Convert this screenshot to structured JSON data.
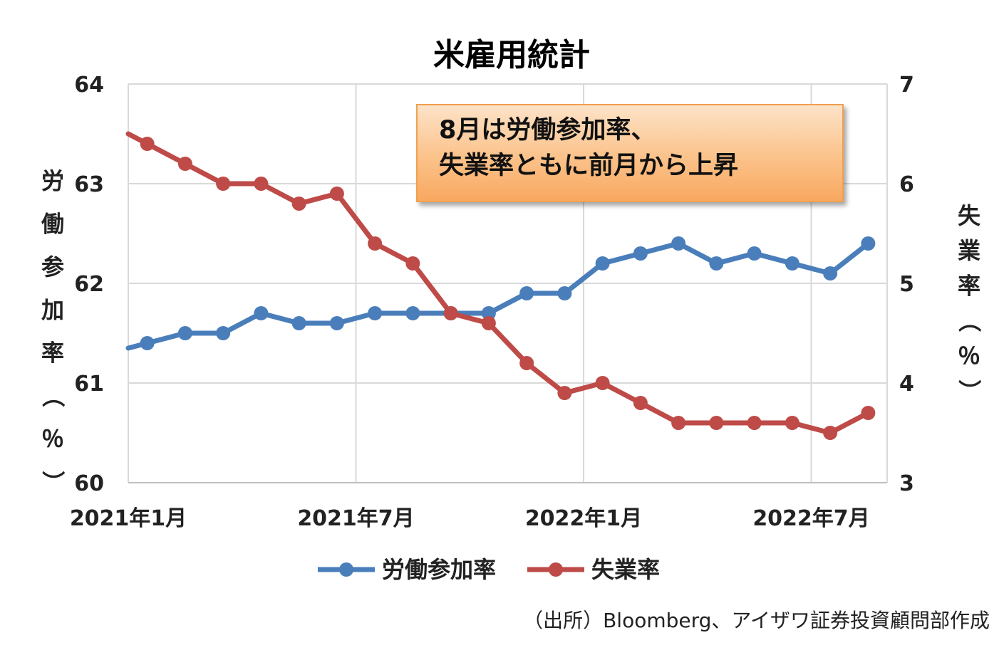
{
  "chart_data": {
    "type": "line",
    "title": "米雇用統計",
    "categories": [
      "2021-01",
      "2021-02",
      "2021-03",
      "2021-04",
      "2021-05",
      "2021-06",
      "2021-07",
      "2021-08",
      "2021-09",
      "2021-10",
      "2021-11",
      "2021-12",
      "2022-01",
      "2022-02",
      "2022-03",
      "2022-04",
      "2022-05",
      "2022-06",
      "2022-07",
      "2022-08"
    ],
    "x_tick_labels": [
      "2021年1月",
      "2021年7月",
      "2022年1月",
      "2022年7月"
    ],
    "y_left": {
      "label": "労働参加率（％）",
      "ylim": [
        60,
        64
      ],
      "ticks": [
        "60",
        "61",
        "62",
        "63",
        "64"
      ]
    },
    "y_right": {
      "label": "失業率（％）",
      "ylim": [
        3,
        7
      ],
      "ticks": [
        "3",
        "4",
        "5",
        "6",
        "7"
      ]
    },
    "series": [
      {
        "name": "労働参加率",
        "axis": "left",
        "color": "#4a7ebb",
        "values": [
          61.4,
          61.5,
          61.5,
          61.7,
          61.6,
          61.6,
          61.7,
          61.7,
          61.7,
          61.7,
          61.9,
          61.9,
          62.2,
          62.3,
          62.4,
          62.2,
          62.3,
          62.2,
          62.1,
          62.4
        ]
      },
      {
        "name": "失業率",
        "axis": "right",
        "color": "#be4b48",
        "values": [
          6.4,
          6.2,
          6.0,
          6.0,
          5.8,
          5.9,
          5.4,
          5.2,
          4.7,
          4.6,
          4.2,
          3.9,
          4.0,
          3.8,
          3.6,
          3.6,
          3.6,
          3.6,
          3.5,
          3.7
        ]
      }
    ],
    "grid": true,
    "legend": "bottom"
  },
  "annotation": {
    "line1": "8月は労働参加率、",
    "line2": "失業率ともに前月から上昇"
  },
  "source": "（出所）Bloomberg、アイザワ証券投資顧問部作成"
}
